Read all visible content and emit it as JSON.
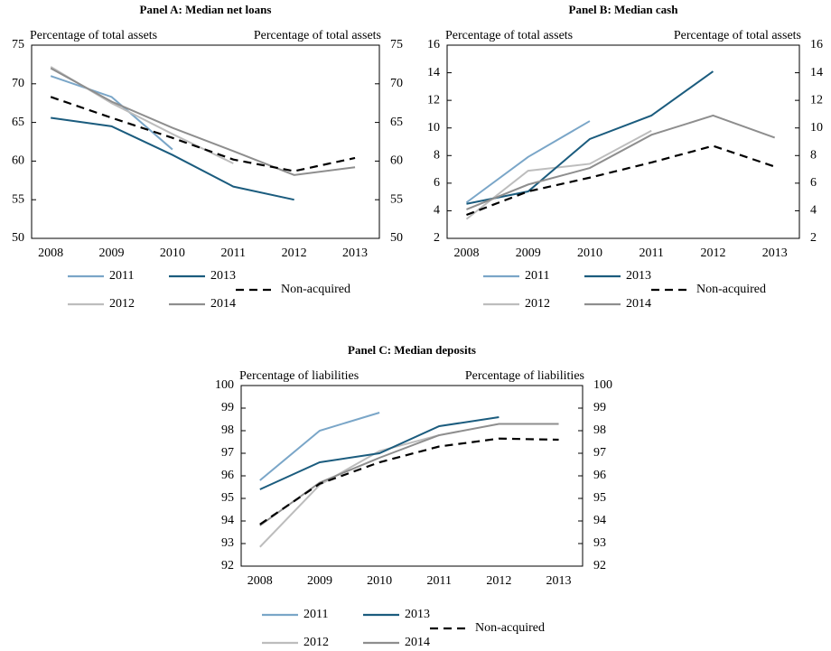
{
  "chart_data": [
    {
      "type": "line",
      "title": "Panel A: Median net loans",
      "ylabel": "Percentage of total assets",
      "y2label": "Percentage of total assets",
      "categories": [
        "2008",
        "2009",
        "2010",
        "2011",
        "2012",
        "2013"
      ],
      "series": [
        {
          "name": "2011",
          "color": "#7aa6c8",
          "line_style": "solid",
          "values": [
            71,
            68.3,
            61.5,
            null,
            null,
            null
          ]
        },
        {
          "name": "2012",
          "color": "#bdbdbd",
          "line_style": "solid",
          "values": [
            72.2,
            67.5,
            63.5,
            59.7,
            null,
            null
          ]
        },
        {
          "name": "2013",
          "color": "#1b5c7e",
          "line_style": "solid",
          "values": [
            65.6,
            64.5,
            60.8,
            56.7,
            55,
            null
          ]
        },
        {
          "name": "2014",
          "color": "#8e8e8e",
          "line_style": "solid",
          "values": [
            72,
            67.7,
            64.3,
            61.3,
            58.2,
            59.2
          ]
        },
        {
          "name": "Non-acquired",
          "color": "#000000",
          "line_style": "dashed",
          "values": [
            68.3,
            65.6,
            63,
            60.2,
            58.7,
            60.4
          ]
        }
      ],
      "ylim": [
        50,
        75
      ],
      "yticks": [
        50,
        55,
        60,
        65,
        70,
        75
      ],
      "y2lim": [
        50,
        75
      ],
      "y2ticks": [
        50,
        55,
        60,
        65,
        70,
        75
      ]
    },
    {
      "type": "line",
      "title": "Panel B: Median cash",
      "ylabel": "Percentage of total assets",
      "y2label": "Percentage of total assets",
      "categories": [
        "2008",
        "2009",
        "2010",
        "2011",
        "2012",
        "2013"
      ],
      "series": [
        {
          "name": "2011",
          "color": "#7aa6c8",
          "line_style": "solid",
          "values": [
            4.6,
            7.9,
            10.5,
            null,
            null,
            null
          ]
        },
        {
          "name": "2012",
          "color": "#bdbdbd",
          "line_style": "solid",
          "values": [
            3.4,
            6.9,
            7.4,
            9.8,
            null,
            null
          ]
        },
        {
          "name": "2013",
          "color": "#1b5c7e",
          "line_style": "solid",
          "values": [
            4.5,
            5.4,
            9.2,
            10.9,
            14.1,
            null
          ]
        },
        {
          "name": "2014",
          "color": "#8e8e8e",
          "line_style": "solid",
          "values": [
            4.1,
            5.9,
            7.1,
            9.5,
            10.9,
            9.3
          ]
        },
        {
          "name": "Non-acquired",
          "color": "#000000",
          "line_style": "dashed",
          "values": [
            3.7,
            5.4,
            6.4,
            7.5,
            8.7,
            7.2
          ]
        }
      ],
      "ylim": [
        2,
        16
      ],
      "yticks": [
        2,
        4,
        6,
        8,
        10,
        12,
        14,
        16
      ],
      "y2lim": [
        2,
        16
      ],
      "y2ticks": [
        2,
        4,
        6,
        8,
        10,
        12,
        14,
        16
      ]
    },
    {
      "type": "line",
      "title": "Panel C: Median deposits",
      "ylabel": "Percentage of liabilities",
      "y2label": "Percentage of liabilities",
      "categories": [
        "2008",
        "2009",
        "2010",
        "2011",
        "2012",
        "2013"
      ],
      "series": [
        {
          "name": "2011",
          "color": "#7aa6c8",
          "line_style": "solid",
          "values": [
            95.8,
            98,
            98.8,
            null,
            null,
            null
          ]
        },
        {
          "name": "2012",
          "color": "#bdbdbd",
          "line_style": "solid",
          "values": [
            92.85,
            95.6,
            97.1,
            97.8,
            null,
            null
          ]
        },
        {
          "name": "2013",
          "color": "#1b5c7e",
          "line_style": "solid",
          "values": [
            95.4,
            96.6,
            97,
            98.2,
            98.6,
            null
          ]
        },
        {
          "name": "2014",
          "color": "#8e8e8e",
          "line_style": "solid",
          "values": [
            93.8,
            95.7,
            96.8,
            97.8,
            98.3,
            98.3
          ]
        },
        {
          "name": "Non-acquired",
          "color": "#000000",
          "line_style": "dashed",
          "values": [
            93.85,
            95.65,
            96.6,
            97.3,
            97.65,
            97.6
          ]
        }
      ],
      "ylim": [
        92,
        100
      ],
      "yticks": [
        92,
        93,
        94,
        95,
        96,
        97,
        98,
        99,
        100
      ],
      "y2lim": [
        92,
        100
      ],
      "y2ticks": [
        92,
        93,
        94,
        95,
        96,
        97,
        98,
        99,
        100
      ]
    }
  ]
}
